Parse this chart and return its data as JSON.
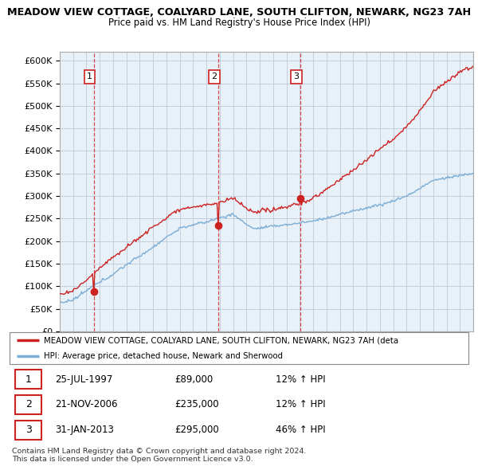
{
  "title_line1": "MEADOW VIEW COTTAGE, COALYARD LANE, SOUTH CLIFTON, NEWARK, NG23 7AH",
  "title_line2": "Price paid vs. HM Land Registry's House Price Index (HPI)",
  "sale_label_dates": [
    "25-JUL-1997",
    "21-NOV-2006",
    "31-JAN-2013"
  ],
  "sale_amounts": [
    "£89,000",
    "£235,000",
    "£295,000"
  ],
  "sale_hpi": [
    "12% ↑ HPI",
    "12% ↑ HPI",
    "46% ↑ HPI"
  ],
  "sale_prices": [
    89000,
    235000,
    295000
  ],
  "sale_labels": [
    "1",
    "2",
    "3"
  ],
  "legend_line1": "MEADOW VIEW COTTAGE, COALYARD LANE, SOUTH CLIFTON, NEWARK, NG23 7AH (deta",
  "legend_line2": "HPI: Average price, detached house, Newark and Sherwood",
  "footer_line1": "Contains HM Land Registry data © Crown copyright and database right 2024.",
  "footer_line2": "This data is licensed under the Open Government Licence v3.0.",
  "red_color": "#cc2222",
  "blue_color": "#7aaed6",
  "bg_chart": "#e8f0f8",
  "bg_white": "#ffffff",
  "grid_color": "#c0c8d8",
  "ylim": [
    0,
    620000
  ],
  "xlim_start": 1995,
  "xlim_end": 2026,
  "yticks": [
    0,
    50000,
    100000,
    150000,
    200000,
    250000,
    300000,
    350000,
    400000,
    450000,
    500000,
    550000,
    600000
  ]
}
